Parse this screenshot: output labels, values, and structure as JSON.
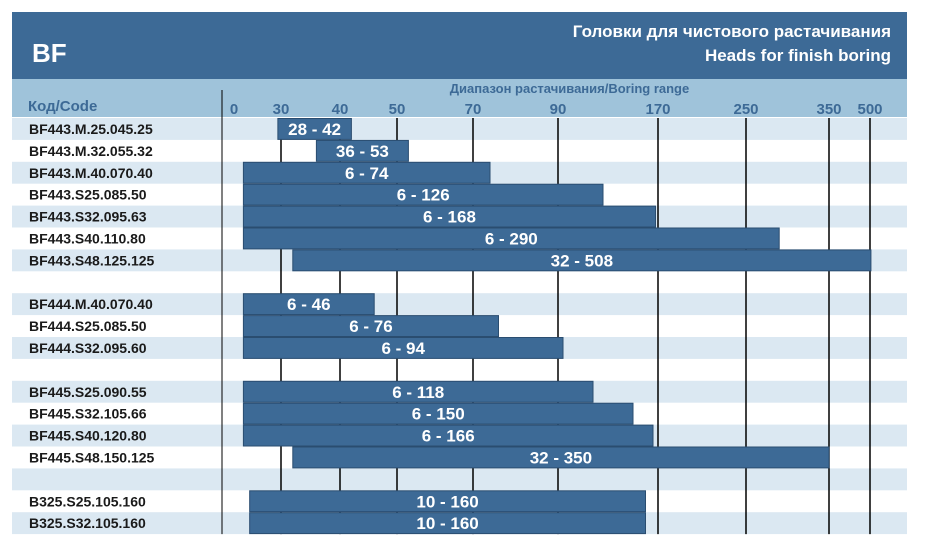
{
  "header": {
    "brand": "BF",
    "title_ru": "Головки для чистового растачивания",
    "title_en": "Heads for finish boring"
  },
  "colors": {
    "header_bg": "#3d6a96",
    "axis_band": "#9fc3da",
    "row_stripe": "#dbe8f2",
    "bar_fill": "#3d6a96",
    "bar_text": "#ffffff",
    "code_text": "#1a1a1a",
    "grid_line": "#000000"
  },
  "chart_data": {
    "type": "bar",
    "orientation": "horizontal-range",
    "xlabel": "Диапазон растачивания/Boring range",
    "category_label": "Код/Code",
    "x_ticks": [
      0,
      30,
      40,
      50,
      70,
      90,
      170,
      250,
      350,
      500
    ],
    "x_scale": "non-linear (piecewise between printed ticks)",
    "grid": true,
    "groups": [
      [
        {
          "code": "BF443.M.25.045.25",
          "min": 28,
          "max": 42,
          "label": "28 - 42"
        },
        {
          "code": "BF443.M.32.055.32",
          "min": 36,
          "max": 53,
          "label": "36 - 53"
        },
        {
          "code": "BF443.M.40.070.40",
          "min": 6,
          "max": 74,
          "label": "6 - 74"
        },
        {
          "code": "BF443.S25.085.50",
          "min": 6,
          "max": 126,
          "label": "6 - 126"
        },
        {
          "code": "BF443.S32.095.63",
          "min": 6,
          "max": 168,
          "label": "6 - 168"
        },
        {
          "code": "BF443.S40.110.80",
          "min": 6,
          "max": 290,
          "label": "6 - 290"
        },
        {
          "code": "BF443.S48.125.125",
          "min": 32,
          "max": 508,
          "label": "32 - 508"
        }
      ],
      [
        {
          "code": "BF444.M.40.070.40",
          "min": 6,
          "max": 46,
          "label": "6 - 46"
        },
        {
          "code": "BF444.S25.085.50",
          "min": 6,
          "max": 76,
          "label": "6 - 76"
        },
        {
          "code": "BF444.S32.095.60",
          "min": 6,
          "max": 94,
          "label": "6 - 94"
        }
      ],
      [
        {
          "code": "BF445.S25.090.55",
          "min": 6,
          "max": 118,
          "label": "6 - 118"
        },
        {
          "code": "BF445.S32.105.66",
          "min": 6,
          "max": 150,
          "label": "6 - 150"
        },
        {
          "code": "BF445.S40.120.80",
          "min": 6,
          "max": 166,
          "label": "6 - 166"
        },
        {
          "code": "BF445.S48.150.125",
          "min": 32,
          "max": 350,
          "label": "32 - 350"
        }
      ],
      [
        {
          "code": "B325.S25.105.160",
          "min": 10,
          "max": 160,
          "label": "10 - 160"
        },
        {
          "code": "B325.S32.105.160",
          "min": 10,
          "max": 160,
          "label": "10 - 160"
        }
      ]
    ]
  }
}
